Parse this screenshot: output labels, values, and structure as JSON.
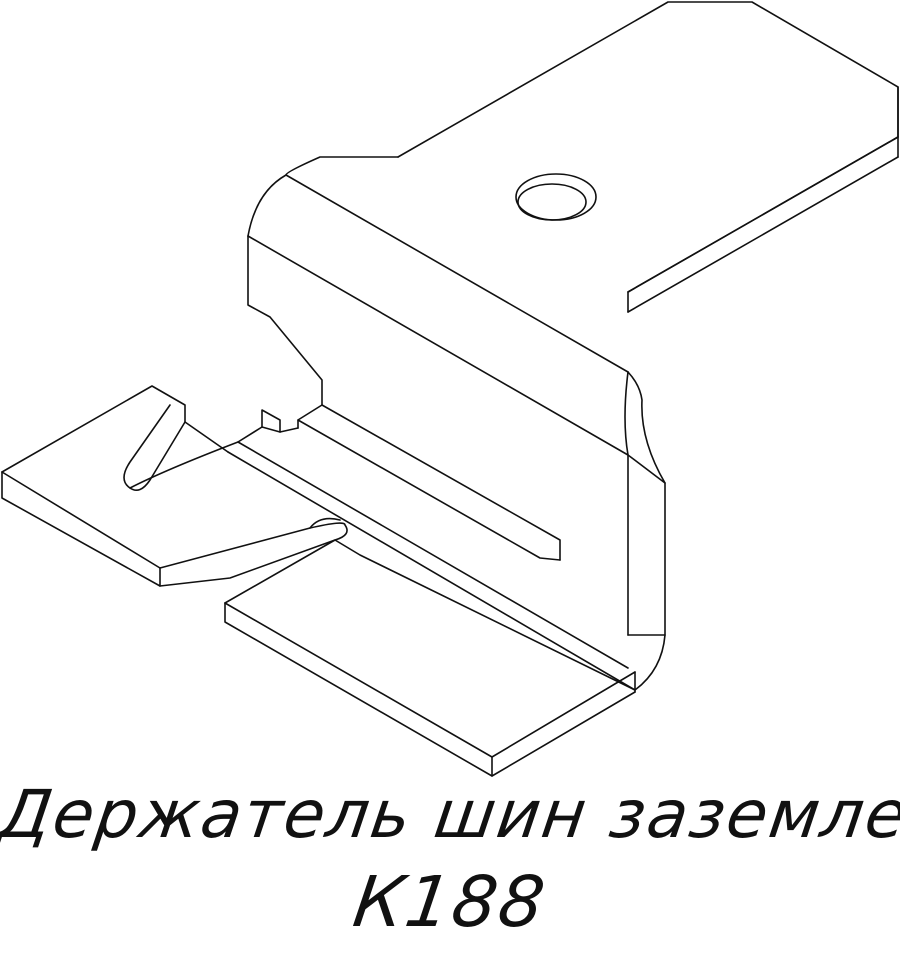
{
  "caption": {
    "title": "Держатель шин заземления",
    "code": "К188"
  },
  "colors": {
    "line": "#111111",
    "background": "#ffffff"
  }
}
